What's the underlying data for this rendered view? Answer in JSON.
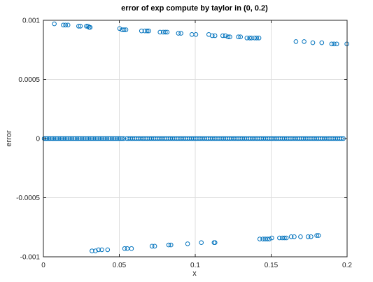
{
  "chart_data": {
    "type": "scatter",
    "title": "error of exp compute by taylor in (0, 0.2)",
    "xlabel": "x",
    "ylabel": "error",
    "xlim": [
      0,
      0.2
    ],
    "ylim": [
      -0.001,
      0.001
    ],
    "x_ticks": [
      0,
      0.05,
      0.1,
      0.15,
      0.2
    ],
    "x_tick_labels": [
      "0",
      "0.05",
      "0.1",
      "0.15",
      "0.2"
    ],
    "y_ticks": [
      0.001,
      0.0005,
      0,
      -0.0005,
      -0.001
    ],
    "y_tick_labels": [
      "0.001",
      "0.0005",
      "0",
      "-0.0005",
      "-0.001"
    ],
    "grid": true,
    "legend": "none",
    "marker": "open-circle",
    "color": "#0072BD",
    "series": [
      {
        "points": [
          [
            0.0072,
            0.00097
          ],
          [
            0.0131,
            0.00096
          ],
          [
            0.0146,
            0.00096
          ],
          [
            0.0162,
            0.00096
          ],
          [
            0.0232,
            0.00095
          ],
          [
            0.0244,
            0.00095
          ],
          [
            0.0283,
            0.00095
          ],
          [
            0.0293,
            0.00095
          ],
          [
            0.0301,
            0.00094
          ],
          [
            0.0308,
            0.00094
          ],
          [
            0.0502,
            0.00093
          ],
          [
            0.0519,
            0.00092
          ],
          [
            0.0531,
            0.00092
          ],
          [
            0.0544,
            0.00092
          ],
          [
            0.0646,
            0.00091
          ],
          [
            0.0668,
            0.00091
          ],
          [
            0.0683,
            0.00091
          ],
          [
            0.0694,
            0.00091
          ],
          [
            0.0768,
            0.0009
          ],
          [
            0.0789,
            0.0009
          ],
          [
            0.0803,
            0.0009
          ],
          [
            0.0815,
            0.0009
          ],
          [
            0.0889,
            0.00089
          ],
          [
            0.0906,
            0.00089
          ],
          [
            0.0978,
            0.00088
          ],
          [
            0.1004,
            0.00088
          ],
          [
            0.1089,
            0.00088
          ],
          [
            0.1112,
            0.00087
          ],
          [
            0.113,
            0.00087
          ],
          [
            0.1181,
            0.00087
          ],
          [
            0.1198,
            0.00087
          ],
          [
            0.1216,
            0.00086
          ],
          [
            0.1228,
            0.00086
          ],
          [
            0.1284,
            0.00086
          ],
          [
            0.1298,
            0.00086
          ],
          [
            0.134,
            0.00085
          ],
          [
            0.1358,
            0.00085
          ],
          [
            0.137,
            0.00085
          ],
          [
            0.1391,
            0.00085
          ],
          [
            0.1405,
            0.00085
          ],
          [
            0.142,
            0.00085
          ],
          [
            0.1663,
            0.00082
          ],
          [
            0.1717,
            0.00082
          ],
          [
            0.1774,
            0.00081
          ],
          [
            0.1833,
            0.00081
          ],
          [
            0.1898,
            0.0008
          ],
          [
            0.1914,
            0.0008
          ],
          [
            0.1932,
            0.0008
          ],
          [
            0.1998,
            0.0008
          ]
        ]
      },
      {
        "points": [
          [
            0.032,
            -0.00095
          ],
          [
            0.0343,
            -0.00095
          ],
          [
            0.0363,
            -0.00094
          ],
          [
            0.0385,
            -0.00094
          ],
          [
            0.0423,
            -0.00094
          ],
          [
            0.0535,
            -0.00093
          ],
          [
            0.0552,
            -0.00093
          ],
          [
            0.058,
            -0.00093
          ],
          [
            0.0715,
            -0.00091
          ],
          [
            0.0733,
            -0.00091
          ],
          [
            0.0825,
            -0.0009
          ],
          [
            0.084,
            -0.0009
          ],
          [
            0.095,
            -0.00089
          ],
          [
            0.104,
            -0.00088
          ],
          [
            0.1124,
            -0.00088
          ],
          [
            0.113,
            -0.00088
          ],
          [
            0.1425,
            -0.00085
          ],
          [
            0.1445,
            -0.00085
          ],
          [
            0.146,
            -0.00085
          ],
          [
            0.1474,
            -0.00085
          ],
          [
            0.1488,
            -0.00085
          ],
          [
            0.1504,
            -0.00084
          ],
          [
            0.1555,
            -0.00084
          ],
          [
            0.1573,
            -0.00084
          ],
          [
            0.1587,
            -0.00084
          ],
          [
            0.16,
            -0.00084
          ],
          [
            0.1632,
            -0.00083
          ],
          [
            0.1652,
            -0.00083
          ],
          [
            0.1693,
            -0.00083
          ],
          [
            0.1743,
            -0.00083
          ],
          [
            0.1762,
            -0.00083
          ],
          [
            0.18,
            -0.00082
          ],
          [
            0.1812,
            -0.00082
          ]
        ]
      },
      {
        "points": [
          [
            0.0005,
            0
          ],
          [
            0.0015,
            0
          ],
          [
            0.0025,
            0
          ],
          [
            0.0036,
            0
          ],
          [
            0.0046,
            0
          ],
          [
            0.0058,
            0
          ],
          [
            0.0068,
            0
          ],
          [
            0.0079,
            0
          ],
          [
            0.009,
            0
          ],
          [
            0.0101,
            0
          ],
          [
            0.0112,
            0
          ],
          [
            0.0122,
            0
          ],
          [
            0.0133,
            0
          ],
          [
            0.0144,
            0
          ],
          [
            0.0155,
            0
          ],
          [
            0.0166,
            0
          ],
          [
            0.0177,
            0
          ],
          [
            0.0188,
            0
          ],
          [
            0.0199,
            0
          ],
          [
            0.021,
            0
          ],
          [
            0.0221,
            0
          ],
          [
            0.0232,
            0
          ],
          [
            0.0243,
            0
          ],
          [
            0.0254,
            0
          ],
          [
            0.0265,
            0
          ],
          [
            0.0276,
            0
          ],
          [
            0.0287,
            0
          ],
          [
            0.0298,
            0
          ],
          [
            0.0309,
            0
          ],
          [
            0.032,
            0
          ],
          [
            0.0331,
            0
          ],
          [
            0.0342,
            0
          ],
          [
            0.0353,
            0
          ],
          [
            0.0364,
            0
          ],
          [
            0.0375,
            0
          ],
          [
            0.0386,
            0
          ],
          [
            0.0397,
            0
          ],
          [
            0.0408,
            0
          ],
          [
            0.0419,
            0
          ],
          [
            0.043,
            0
          ],
          [
            0.0441,
            0
          ],
          [
            0.0452,
            0
          ],
          [
            0.0463,
            0
          ],
          [
            0.0474,
            0
          ],
          [
            0.0485,
            0
          ],
          [
            0.0496,
            0
          ],
          [
            0.0507,
            0
          ],
          [
            0.0518,
            0
          ],
          [
            0.0529,
            0
          ],
          [
            0.055,
            0
          ],
          [
            0.0562,
            0
          ],
          [
            0.0575,
            0
          ],
          [
            0.0587,
            0
          ],
          [
            0.06,
            0
          ],
          [
            0.0612,
            0
          ],
          [
            0.0625,
            0
          ],
          [
            0.0637,
            0
          ],
          [
            0.065,
            0
          ],
          [
            0.0662,
            0
          ],
          [
            0.0675,
            0
          ],
          [
            0.0687,
            0
          ],
          [
            0.07,
            0
          ],
          [
            0.0712,
            0
          ],
          [
            0.0725,
            0
          ],
          [
            0.0737,
            0
          ],
          [
            0.075,
            0
          ],
          [
            0.0762,
            0
          ],
          [
            0.0775,
            0
          ],
          [
            0.0787,
            0
          ],
          [
            0.08,
            0
          ],
          [
            0.0812,
            0
          ],
          [
            0.0825,
            0
          ],
          [
            0.0837,
            0
          ],
          [
            0.085,
            0
          ],
          [
            0.0862,
            0
          ],
          [
            0.0875,
            0
          ],
          [
            0.0887,
            0
          ],
          [
            0.09,
            0
          ],
          [
            0.0912,
            0
          ],
          [
            0.0925,
            0
          ],
          [
            0.0937,
            0
          ],
          [
            0.095,
            0
          ],
          [
            0.0962,
            0
          ],
          [
            0.0975,
            0
          ],
          [
            0.0987,
            0
          ],
          [
            0.1,
            0
          ],
          [
            0.1012,
            0
          ],
          [
            0.1025,
            0
          ],
          [
            0.1037,
            0
          ],
          [
            0.105,
            0
          ],
          [
            0.1062,
            0
          ],
          [
            0.1075,
            0
          ],
          [
            0.1087,
            0
          ],
          [
            0.11,
            0
          ],
          [
            0.1112,
            0
          ],
          [
            0.1125,
            0
          ],
          [
            0.1137,
            0
          ],
          [
            0.115,
            0
          ],
          [
            0.1162,
            0
          ],
          [
            0.1175,
            0
          ],
          [
            0.1187,
            0
          ],
          [
            0.12,
            0
          ],
          [
            0.1212,
            0
          ],
          [
            0.1225,
            0
          ],
          [
            0.1237,
            0
          ],
          [
            0.125,
            0
          ],
          [
            0.1262,
            0
          ],
          [
            0.1275,
            0
          ],
          [
            0.1287,
            0
          ],
          [
            0.13,
            0
          ],
          [
            0.1312,
            0
          ],
          [
            0.1325,
            0
          ],
          [
            0.1337,
            0
          ],
          [
            0.135,
            0
          ],
          [
            0.1362,
            0
          ],
          [
            0.1375,
            0
          ],
          [
            0.1387,
            0
          ],
          [
            0.14,
            0
          ],
          [
            0.1412,
            0
          ],
          [
            0.1425,
            0
          ],
          [
            0.1437,
            0
          ],
          [
            0.145,
            0
          ],
          [
            0.1462,
            0
          ],
          [
            0.1475,
            0
          ],
          [
            0.1487,
            0
          ],
          [
            0.15,
            0
          ],
          [
            0.1512,
            0
          ],
          [
            0.1525,
            0
          ],
          [
            0.1537,
            0
          ],
          [
            0.155,
            0
          ],
          [
            0.1562,
            0
          ],
          [
            0.1575,
            0
          ],
          [
            0.1587,
            0
          ],
          [
            0.16,
            0
          ],
          [
            0.1612,
            0
          ],
          [
            0.1625,
            0
          ],
          [
            0.1637,
            0
          ],
          [
            0.165,
            0
          ],
          [
            0.1662,
            0
          ],
          [
            0.1675,
            0
          ],
          [
            0.1687,
            0
          ],
          [
            0.17,
            0
          ],
          [
            0.1712,
            0
          ],
          [
            0.1725,
            0
          ],
          [
            0.1737,
            0
          ],
          [
            0.175,
            0
          ],
          [
            0.1762,
            0
          ],
          [
            0.1775,
            0
          ],
          [
            0.1787,
            0
          ],
          [
            0.18,
            0
          ],
          [
            0.1812,
            0
          ],
          [
            0.1825,
            0
          ],
          [
            0.1837,
            0
          ],
          [
            0.185,
            0
          ],
          [
            0.1862,
            0
          ],
          [
            0.1875,
            0
          ],
          [
            0.1887,
            0
          ],
          [
            0.19,
            0
          ],
          [
            0.1912,
            0
          ],
          [
            0.1925,
            0
          ],
          [
            0.1937,
            0
          ],
          [
            0.195,
            0
          ],
          [
            0.1962,
            0
          ],
          [
            0.1975,
            0
          ]
        ]
      }
    ]
  }
}
